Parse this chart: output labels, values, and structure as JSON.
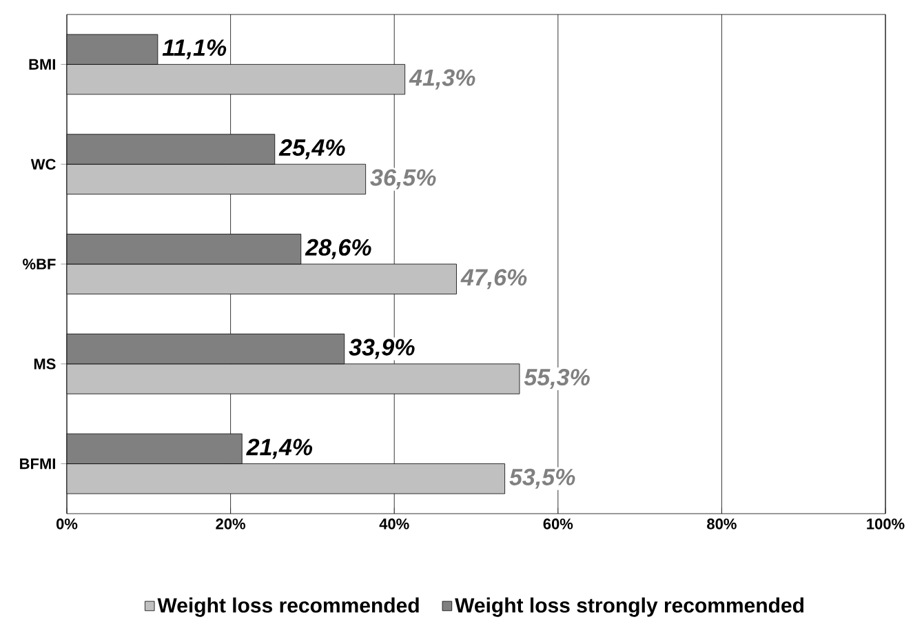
{
  "chart_data": {
    "type": "bar",
    "orientation": "horizontal",
    "categories": [
      "BMI",
      "WC",
      "%BF",
      "MS",
      "BFMI"
    ],
    "series": [
      {
        "name": "Weight loss recommended",
        "color": "#c0c0c0",
        "values": [
          41.3,
          36.5,
          47.6,
          55.3,
          53.5
        ],
        "value_labels": [
          "41,3%",
          "36,5%",
          "47,6%",
          "55,3%",
          "53,5%"
        ]
      },
      {
        "name": "Weight loss strongly recommended",
        "color": "#808080",
        "values": [
          11.1,
          25.4,
          28.6,
          33.9,
          21.4
        ],
        "value_labels": [
          "11,1%",
          "25,4%",
          "28,6%",
          "33,9%",
          "21,4%"
        ]
      }
    ],
    "xlim": [
      0,
      100
    ],
    "xticks": [
      {
        "value": 0,
        "label": "0%"
      },
      {
        "value": 20,
        "label": "20%"
      },
      {
        "value": 40,
        "label": "40%"
      },
      {
        "value": 60,
        "label": "60%"
      },
      {
        "value": 80,
        "label": "80%"
      },
      {
        "value": 100,
        "label": "100%"
      }
    ],
    "grid": "x",
    "legend": "bottom"
  }
}
